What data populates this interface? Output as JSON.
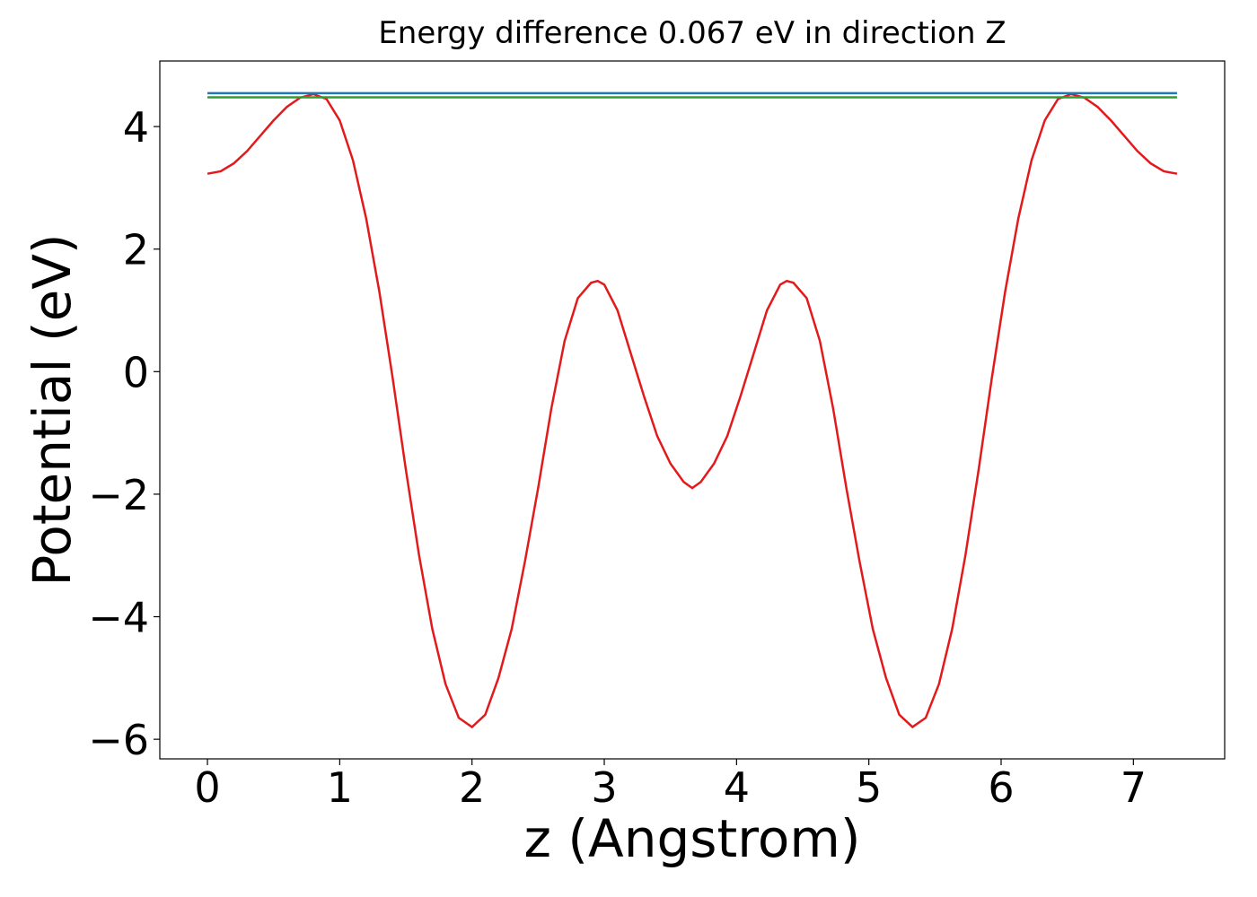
{
  "chart_data": {
    "type": "line",
    "title": "Energy difference 0.067 eV in direction Z",
    "xlabel": "z (Angstrom)",
    "ylabel": "Potential (eV)",
    "xlim": [
      -0.36,
      7.69
    ],
    "ylim": [
      -6.32,
      5.07
    ],
    "xticks": [
      0,
      1,
      2,
      3,
      4,
      5,
      6,
      7
    ],
    "yticks": [
      {
        "value": -6,
        "label": "−6"
      },
      {
        "value": -4,
        "label": "−4"
      },
      {
        "value": -2,
        "label": "−2"
      },
      0,
      2,
      4
    ],
    "grid": false,
    "series": [
      {
        "color": "#e31a1c",
        "x": [
          0,
          0.1,
          0.2,
          0.3,
          0.4,
          0.5,
          0.6,
          0.7,
          0.8,
          0.9,
          1.0,
          1.1,
          1.2,
          1.3,
          1.4,
          1.5,
          1.6,
          1.7,
          1.8,
          1.9,
          2.0,
          2.1,
          2.2,
          2.3,
          2.4,
          2.5,
          2.6,
          2.7,
          2.8,
          2.9,
          2.95,
          3.0,
          3.1,
          3.2,
          3.3,
          3.4,
          3.5,
          3.6,
          3.665,
          3.73,
          3.83,
          3.93,
          4.03,
          4.13,
          4.23,
          4.33,
          4.38,
          4.43,
          4.53,
          4.63,
          4.73,
          4.83,
          4.93,
          5.03,
          5.13,
          5.23,
          5.33,
          5.43,
          5.53,
          5.63,
          5.73,
          5.83,
          5.93,
          6.03,
          6.13,
          6.23,
          6.33,
          6.43,
          6.53,
          6.63,
          6.73,
          6.83,
          6.93,
          7.03,
          7.13,
          7.23,
          7.33
        ],
        "values": [
          3.23,
          3.27,
          3.4,
          3.6,
          3.85,
          4.1,
          4.32,
          4.47,
          4.53,
          4.45,
          4.1,
          3.45,
          2.5,
          1.3,
          -0.1,
          -1.6,
          -3.0,
          -4.2,
          -5.1,
          -5.65,
          -5.8,
          -5.6,
          -5.0,
          -4.2,
          -3.1,
          -1.9,
          -0.6,
          0.5,
          1.2,
          1.45,
          1.48,
          1.42,
          1.0,
          0.3,
          -0.4,
          -1.05,
          -1.5,
          -1.8,
          -1.9,
          -1.8,
          -1.5,
          -1.05,
          -0.4,
          0.3,
          1.0,
          1.42,
          1.48,
          1.45,
          1.2,
          0.5,
          -0.6,
          -1.9,
          -3.1,
          -4.2,
          -5.0,
          -5.6,
          -5.8,
          -5.65,
          -5.1,
          -4.2,
          -3.0,
          -1.6,
          -0.1,
          1.3,
          2.5,
          3.45,
          4.1,
          4.45,
          4.53,
          4.47,
          4.32,
          4.1,
          3.85,
          3.6,
          3.4,
          3.27,
          3.23
        ]
      },
      {
        "color": "#1f77b4",
        "x": [
          0,
          7.33
        ],
        "values": [
          4.545,
          4.545
        ]
      },
      {
        "color": "#2ca02c",
        "x": [
          0,
          7.33
        ],
        "values": [
          4.478,
          4.478
        ]
      }
    ]
  }
}
